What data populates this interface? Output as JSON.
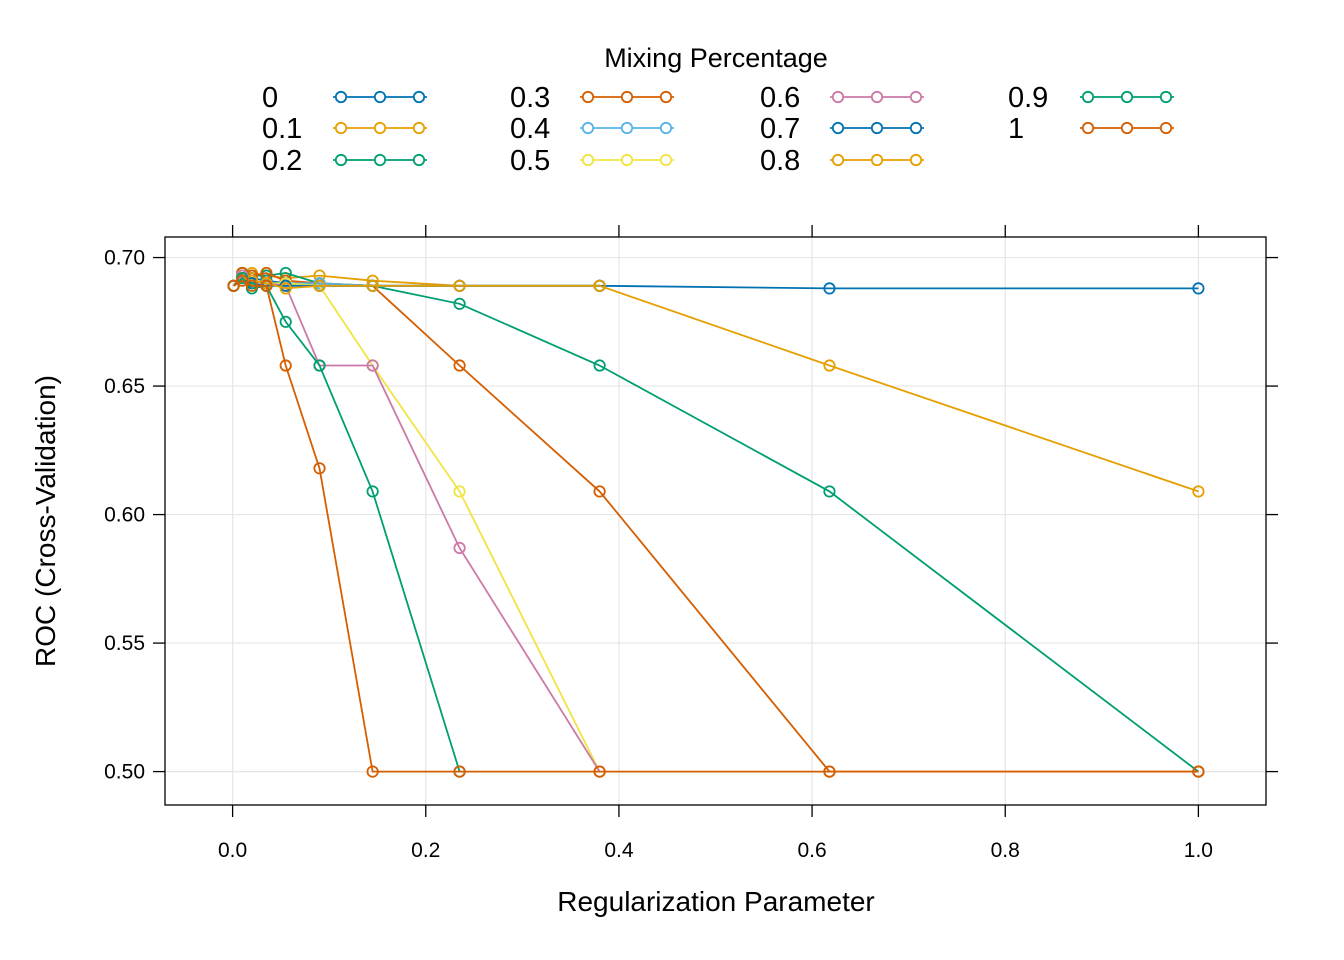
{
  "chart_data": {
    "type": "line",
    "title": "",
    "xlabel": "Regularization Parameter",
    "ylabel": "ROC (Cross-Validation)",
    "legend": {
      "title": "Mixing Percentage",
      "placement": "top"
    },
    "xlim": [
      -0.07,
      1.07
    ],
    "ylim": [
      0.487,
      0.708
    ],
    "xticks": [
      "0.0",
      "0.2",
      "0.4",
      "0.6",
      "0.8",
      "1.0"
    ],
    "yticks": [
      "0.50",
      "0.55",
      "0.60",
      "0.65",
      "0.70"
    ],
    "grid": true,
    "x": [
      0.001,
      0.0016,
      0.0026,
      0.0042,
      0.0067,
      0.0108,
      0.0175,
      0.0282,
      0.0455,
      0.0733,
      0.1183,
      0.1907,
      0.3076,
      0.4961,
      0.8
    ],
    "series": [
      {
        "name": "0",
        "color": "#0072B2",
        "x": [
          0.001,
          0.01,
          0.02,
          0.035,
          0.055,
          0.09,
          0.145,
          0.235,
          0.38,
          0.618,
          1.0
        ],
        "values": [
          0.689,
          0.693,
          0.692,
          0.691,
          0.69,
          0.689,
          0.689,
          0.689,
          0.689,
          0.688,
          0.688
        ]
      },
      {
        "name": "0.1",
        "color": "#E69F00",
        "x": [
          0.001,
          0.01,
          0.02,
          0.035,
          0.055,
          0.09,
          0.145,
          0.235,
          0.38,
          0.618,
          1.0
        ],
        "values": [
          0.689,
          0.694,
          0.694,
          0.693,
          0.692,
          0.693,
          0.691,
          0.689,
          0.689,
          0.658,
          0.609
        ]
      },
      {
        "name": "0.2",
        "color": "#009E73",
        "x": [
          0.001,
          0.01,
          0.02,
          0.035,
          0.055,
          0.09,
          0.145,
          0.235,
          0.38,
          0.618,
          1.0
        ],
        "values": [
          0.689,
          0.694,
          0.693,
          0.693,
          0.694,
          0.69,
          0.689,
          0.682,
          0.658,
          0.609,
          0.5
        ]
      },
      {
        "name": "0.3",
        "color": "#D55E00",
        "x": [
          0.001,
          0.01,
          0.02,
          0.035,
          0.055,
          0.09,
          0.145,
          0.235,
          0.38,
          0.618,
          1.0
        ],
        "values": [
          0.689,
          0.694,
          0.693,
          0.694,
          0.691,
          0.69,
          0.689,
          0.658,
          0.609,
          0.5,
          0.5
        ]
      },
      {
        "name": "0.4",
        "color": "#56B4E9",
        "x": [
          0.001,
          0.01,
          0.02,
          0.035,
          0.055,
          0.09,
          0.145,
          0.235,
          0.38
        ],
        "values": [
          0.689,
          0.693,
          0.691,
          0.69,
          0.69,
          0.69,
          0.689,
          0.689,
          0.689
        ]
      },
      {
        "name": "0.5",
        "color": "#F0E442",
        "x": [
          0.001,
          0.01,
          0.02,
          0.035,
          0.055,
          0.09,
          0.145,
          0.235,
          0.38
        ],
        "values": [
          0.689,
          0.693,
          0.691,
          0.69,
          0.69,
          0.689,
          0.658,
          0.609,
          0.5
        ]
      },
      {
        "name": "0.6",
        "color": "#CC79A7",
        "x": [
          0.001,
          0.01,
          0.02,
          0.035,
          0.055,
          0.09,
          0.145,
          0.235,
          0.38
        ],
        "values": [
          0.689,
          0.693,
          0.691,
          0.69,
          0.689,
          0.658,
          0.658,
          0.587,
          0.5
        ]
      },
      {
        "name": "0.7",
        "color": "#0072B2",
        "x": [
          0.001,
          0.01,
          0.02,
          0.035,
          0.055,
          0.09,
          0.145,
          0.235,
          0.38
        ],
        "values": [
          0.689,
          0.692,
          0.69,
          0.689,
          0.689,
          0.689,
          0.689,
          0.689,
          0.689
        ]
      },
      {
        "name": "0.8",
        "color": "#E69F00",
        "x": [
          0.001,
          0.01,
          0.02,
          0.035,
          0.055,
          0.09,
          0.145,
          0.235,
          0.38
        ],
        "values": [
          0.689,
          0.692,
          0.691,
          0.69,
          0.688,
          0.689,
          0.689,
          0.689,
          0.689
        ]
      },
      {
        "name": "0.9",
        "color": "#009E73",
        "x": [
          0.001,
          0.01,
          0.02,
          0.035,
          0.055,
          0.09,
          0.145,
          0.235
        ],
        "values": [
          0.689,
          0.692,
          0.688,
          0.689,
          0.675,
          0.658,
          0.609,
          0.5
        ]
      },
      {
        "name": "1",
        "color": "#D55E00",
        "x": [
          0.001,
          0.01,
          0.02,
          0.035,
          0.055,
          0.09,
          0.145,
          0.235,
          0.38,
          0.618,
          1.0
        ],
        "values": [
          0.689,
          0.691,
          0.689,
          0.689,
          0.658,
          0.618,
          0.5,
          0.5,
          0.5,
          0.5,
          0.5
        ]
      }
    ]
  }
}
